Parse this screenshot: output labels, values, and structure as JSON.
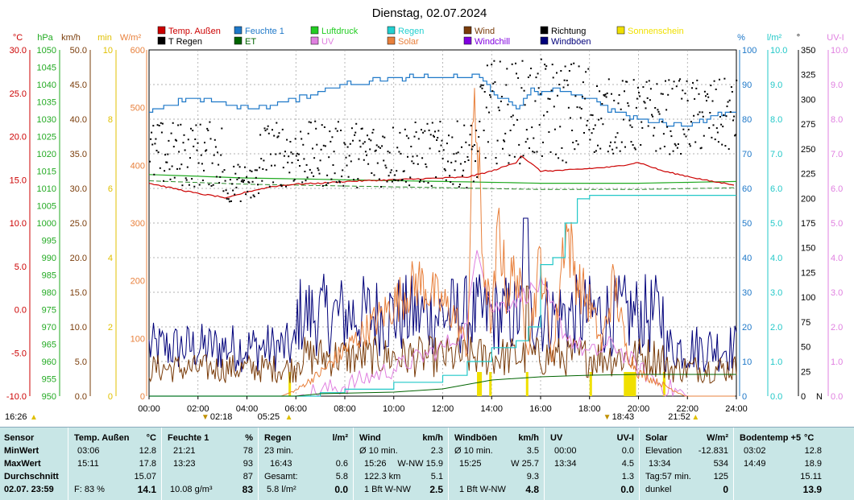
{
  "title": "Dienstag, 02.07.2024",
  "colors": {
    "temp": "#cc0000",
    "humidity": "#1e78c8",
    "pressure": "#22aa22",
    "rain": "#22c8c8",
    "wind": "#7a3c0a",
    "direction": "#000000",
    "sunshine": "#f0e000",
    "train": "#f0d000",
    "et": "#006400",
    "uv": "#e080e0",
    "solar": "#e8803c",
    "windchill": "#8000e0",
    "gust": "#00007a"
  },
  "legend": [
    {
      "label": "Temp. Außen",
      "color": "#cc0000"
    },
    {
      "label": "Feuchte 1",
      "color": "#1e78c8"
    },
    {
      "label": "Luftdruck",
      "color": "#22cc22"
    },
    {
      "label": "Regen",
      "color": "#22d0d0"
    },
    {
      "label": "Wind",
      "color": "#7a3c0a"
    },
    {
      "label": "Richtung",
      "color": "#000000"
    },
    {
      "label": "Sonnenschein",
      "color": "#f0e000"
    },
    {
      "label": "T Regen",
      "color": "#000000"
    },
    {
      "label": "ET",
      "color": "#006400"
    },
    {
      "label": "UV",
      "color": "#e080e0"
    },
    {
      "label": "Solar",
      "color": "#e8803c"
    },
    {
      "label": "Windchill",
      "color": "#8000e0"
    },
    {
      "label": "Windböen",
      "color": "#00007a"
    }
  ],
  "axes": {
    "temp": {
      "unit": "°C",
      "ticks": [
        "30.0",
        "25.0",
        "20.0",
        "15.0",
        "10.0",
        "5.0",
        "0.0",
        "-5.0",
        "-10.0"
      ]
    },
    "pressure": {
      "unit": "hPa",
      "ticks": [
        "1050",
        "1045",
        "1040",
        "1035",
        "1030",
        "1025",
        "1020",
        "1015",
        "1010",
        "1005",
        "1000",
        "995",
        "990",
        "985",
        "980",
        "975",
        "970",
        "965",
        "960",
        "955",
        "950"
      ]
    },
    "wind": {
      "unit": "km/h",
      "ticks": [
        "50.0",
        "45.0",
        "40.0",
        "35.0",
        "30.0",
        "25.0",
        "20.0",
        "15.0",
        "10.0",
        "5.0",
        "0.0"
      ]
    },
    "minutes": {
      "unit": "min",
      "ticks": [
        "10",
        "8",
        "6",
        "4",
        "2",
        "0"
      ]
    },
    "solar": {
      "unit": "W/m²",
      "ticks": [
        "600",
        "500",
        "400",
        "300",
        "200",
        "100",
        "0"
      ]
    },
    "humidity": {
      "unit": "%",
      "ticks": [
        "100",
        "90",
        "80",
        "70",
        "60",
        "50",
        "40",
        "30",
        "20",
        "10",
        "0"
      ]
    },
    "rain": {
      "unit": "l/m²",
      "ticks": [
        "10.0",
        "9.0",
        "8.0",
        "7.0",
        "6.0",
        "5.0",
        "4.0",
        "3.0",
        "2.0",
        "1.0",
        "0.0"
      ]
    },
    "direction": {
      "unit": "°",
      "ticks": [
        "350",
        "325",
        "300",
        "275",
        "250",
        "225",
        "200",
        "175",
        "150",
        "125",
        "100",
        "75",
        "50",
        "25",
        "0"
      ],
      "bottom_label": "N"
    },
    "uv": {
      "unit": "UV-I",
      "ticks": [
        "10.0",
        "9.0",
        "8.0",
        "7.0",
        "6.0",
        "5.0",
        "4.0",
        "3.0",
        "2.0",
        "1.0",
        "0.0"
      ]
    }
  },
  "time_ticks": [
    "00:00",
    "02:00",
    "04:00",
    "06:00",
    "08:00",
    "10:00",
    "12:00",
    "14:00",
    "16:00",
    "18:00",
    "20:00",
    "22:00",
    "24:00"
  ],
  "events": {
    "sunrise_prev": "16:26",
    "moon1": "02:18",
    "sunrise": "05:25",
    "moon2": "18:43",
    "sunset": "21:52"
  },
  "chart_data": {
    "type": "line",
    "x_unit": "hours",
    "xlim": [
      0,
      24
    ],
    "series": [
      {
        "name": "Temp. Außen",
        "unit": "°C",
        "x": [
          0,
          1,
          2,
          3,
          3.1,
          4,
          5,
          6,
          7,
          8,
          9,
          10,
          11,
          12,
          13,
          14,
          15,
          15.2,
          16,
          17,
          18,
          19,
          20,
          21,
          22,
          23,
          24
        ],
        "y": [
          14.6,
          14.0,
          13.4,
          13.0,
          12.8,
          13.6,
          14.2,
          14.5,
          14.6,
          14.8,
          14.9,
          15.0,
          15.1,
          15.2,
          15.3,
          16.0,
          17.0,
          17.8,
          16.0,
          16.1,
          16.3,
          16.5,
          17.0,
          16.0,
          15.4,
          14.8,
          14.4
        ]
      },
      {
        "name": "Feuchte 1",
        "unit": "%",
        "x": [
          0,
          1,
          2,
          3,
          4,
          5,
          6,
          7,
          8,
          9,
          10,
          11,
          12,
          13,
          13.3,
          13.6,
          14,
          15,
          15.5,
          16,
          17,
          18,
          19,
          20,
          21,
          22,
          23,
          24
        ],
        "y": [
          82,
          85,
          86,
          85,
          83,
          84,
          86,
          88,
          90,
          91,
          92,
          92,
          92,
          92,
          93,
          91,
          88,
          83,
          88,
          88,
          88,
          86,
          82,
          80,
          79,
          78,
          81,
          82
        ]
      },
      {
        "name": "Luftdruck",
        "unit": "hPa",
        "x": [
          0,
          4,
          8,
          12,
          16,
          20,
          24
        ],
        "y": [
          1014,
          1013,
          1012.5,
          1012,
          1011.5,
          1011.5,
          1012
        ]
      },
      {
        "name": "Regen",
        "unit": "l/m²",
        "x": [
          0,
          6,
          7,
          8,
          10,
          12,
          13,
          14,
          15,
          15.5,
          16,
          16.5,
          17,
          17.5,
          18,
          24
        ],
        "y": [
          0,
          0,
          0.1,
          0.2,
          0.4,
          0.6,
          1.0,
          1.4,
          1.6,
          2.0,
          3.8,
          4.0,
          5.0,
          5.7,
          5.8,
          5.8
        ]
      },
      {
        "name": "Wind",
        "unit": "km/h",
        "mean": 5.1,
        "max": 15.9
      },
      {
        "name": "Windböen",
        "unit": "km/h",
        "mean": 9.3,
        "max": 25.7
      },
      {
        "name": "Solar",
        "unit": "W/m²",
        "x": [
          0,
          5.4,
          6,
          7,
          8,
          9,
          10,
          11,
          12,
          12.5,
          13,
          13.3,
          13.6,
          14,
          14.3,
          14.6,
          15,
          15.5,
          16,
          16.5,
          17,
          17.5,
          18,
          18.5,
          19,
          19.5,
          20,
          21,
          21.9,
          24
        ],
        "y": [
          0,
          0,
          10,
          40,
          80,
          120,
          160,
          200,
          160,
          140,
          80,
          534,
          260,
          120,
          300,
          180,
          220,
          90,
          240,
          60,
          300,
          200,
          160,
          90,
          200,
          80,
          40,
          20,
          0,
          0
        ]
      },
      {
        "name": "UV",
        "unit": "UV-I",
        "x": [
          0,
          6,
          8,
          10,
          12,
          13,
          13.4,
          14,
          15,
          16,
          17,
          18,
          19,
          20,
          21,
          22,
          24
        ],
        "y": [
          0,
          0,
          0.3,
          0.8,
          1.4,
          2.0,
          4.5,
          2.5,
          2.8,
          3.2,
          1.8,
          1.2,
          1.5,
          0.8,
          0.3,
          0,
          0
        ]
      },
      {
        "name": "Richtung",
        "unit": "°",
        "type": "scatter"
      }
    ]
  },
  "table": {
    "rows": [
      "MinWert",
      "MaxWert",
      "Durchschnitt",
      "02.07. 23:59"
    ],
    "sensor": {
      "header": "Sensor"
    },
    "temp": {
      "header": "Temp. Außen",
      "unit": "°C",
      "min_time": "03:06",
      "min": "12.8",
      "max_time": "15:11",
      "max": "17.8",
      "avg": "15.07",
      "cur_hum": "F: 83 %",
      "cur": "14.1"
    },
    "hum": {
      "header": "Feuchte 1",
      "unit": "%",
      "min_time": "21:21",
      "min": "78",
      "max_time": "13:23",
      "max": "93",
      "avg": "87",
      "abs": "10.08 g/m³",
      "cur": "83"
    },
    "rain": {
      "header": "Regen",
      "unit": "l/m²",
      "r1": "23 min.",
      "r2_time": "16:43",
      "r2": "0.6",
      "r3_label": "Gesamt:",
      "r3": "5.8",
      "r4_label": "5.8 l/m²",
      "cur": "0.0"
    },
    "wind": {
      "header": "Wind",
      "unit": "km/h",
      "r1_label": "Ø 10 min.",
      "r1": "2.3",
      "r2_time": "15:26",
      "r2": "W-NW 15.9",
      "r3_label": "122.3 km",
      "r3": "5.1",
      "r4_label": "1 Bft W-NW",
      "cur": "2.5"
    },
    "gust": {
      "header": "Windböen",
      "unit": "km/h",
      "r1_label": "Ø 10 min.",
      "r1": "3.5",
      "r2_time": "15:25",
      "r2": "W 25.7",
      "r3": "9.3",
      "r4_label": "1 Bft W-NW",
      "cur": "4.8"
    },
    "uv": {
      "header": "UV",
      "unit": "UV-I",
      "r1_time": "00:00",
      "r1": "0.0",
      "r2_time": "13:34",
      "r2": "4.5",
      "r3": "1.3",
      "cur": "0.0"
    },
    "solar": {
      "header": "Solar",
      "unit": "W/m²",
      "r1_label": "Elevation",
      "r1": "-12.831",
      "r2_time": "13:34",
      "r2": "534",
      "r3_label": "Tag:57 min.",
      "r3": "125",
      "r4_label": "dunkel",
      "cur": "0"
    },
    "soil": {
      "header": "Bodentemp +5",
      "unit": "°C",
      "r1_time": "03:02",
      "r1": "12.8",
      "r2_time": "14:49",
      "r2": "18.9",
      "r3": "15.11",
      "cur": "13.9"
    }
  }
}
